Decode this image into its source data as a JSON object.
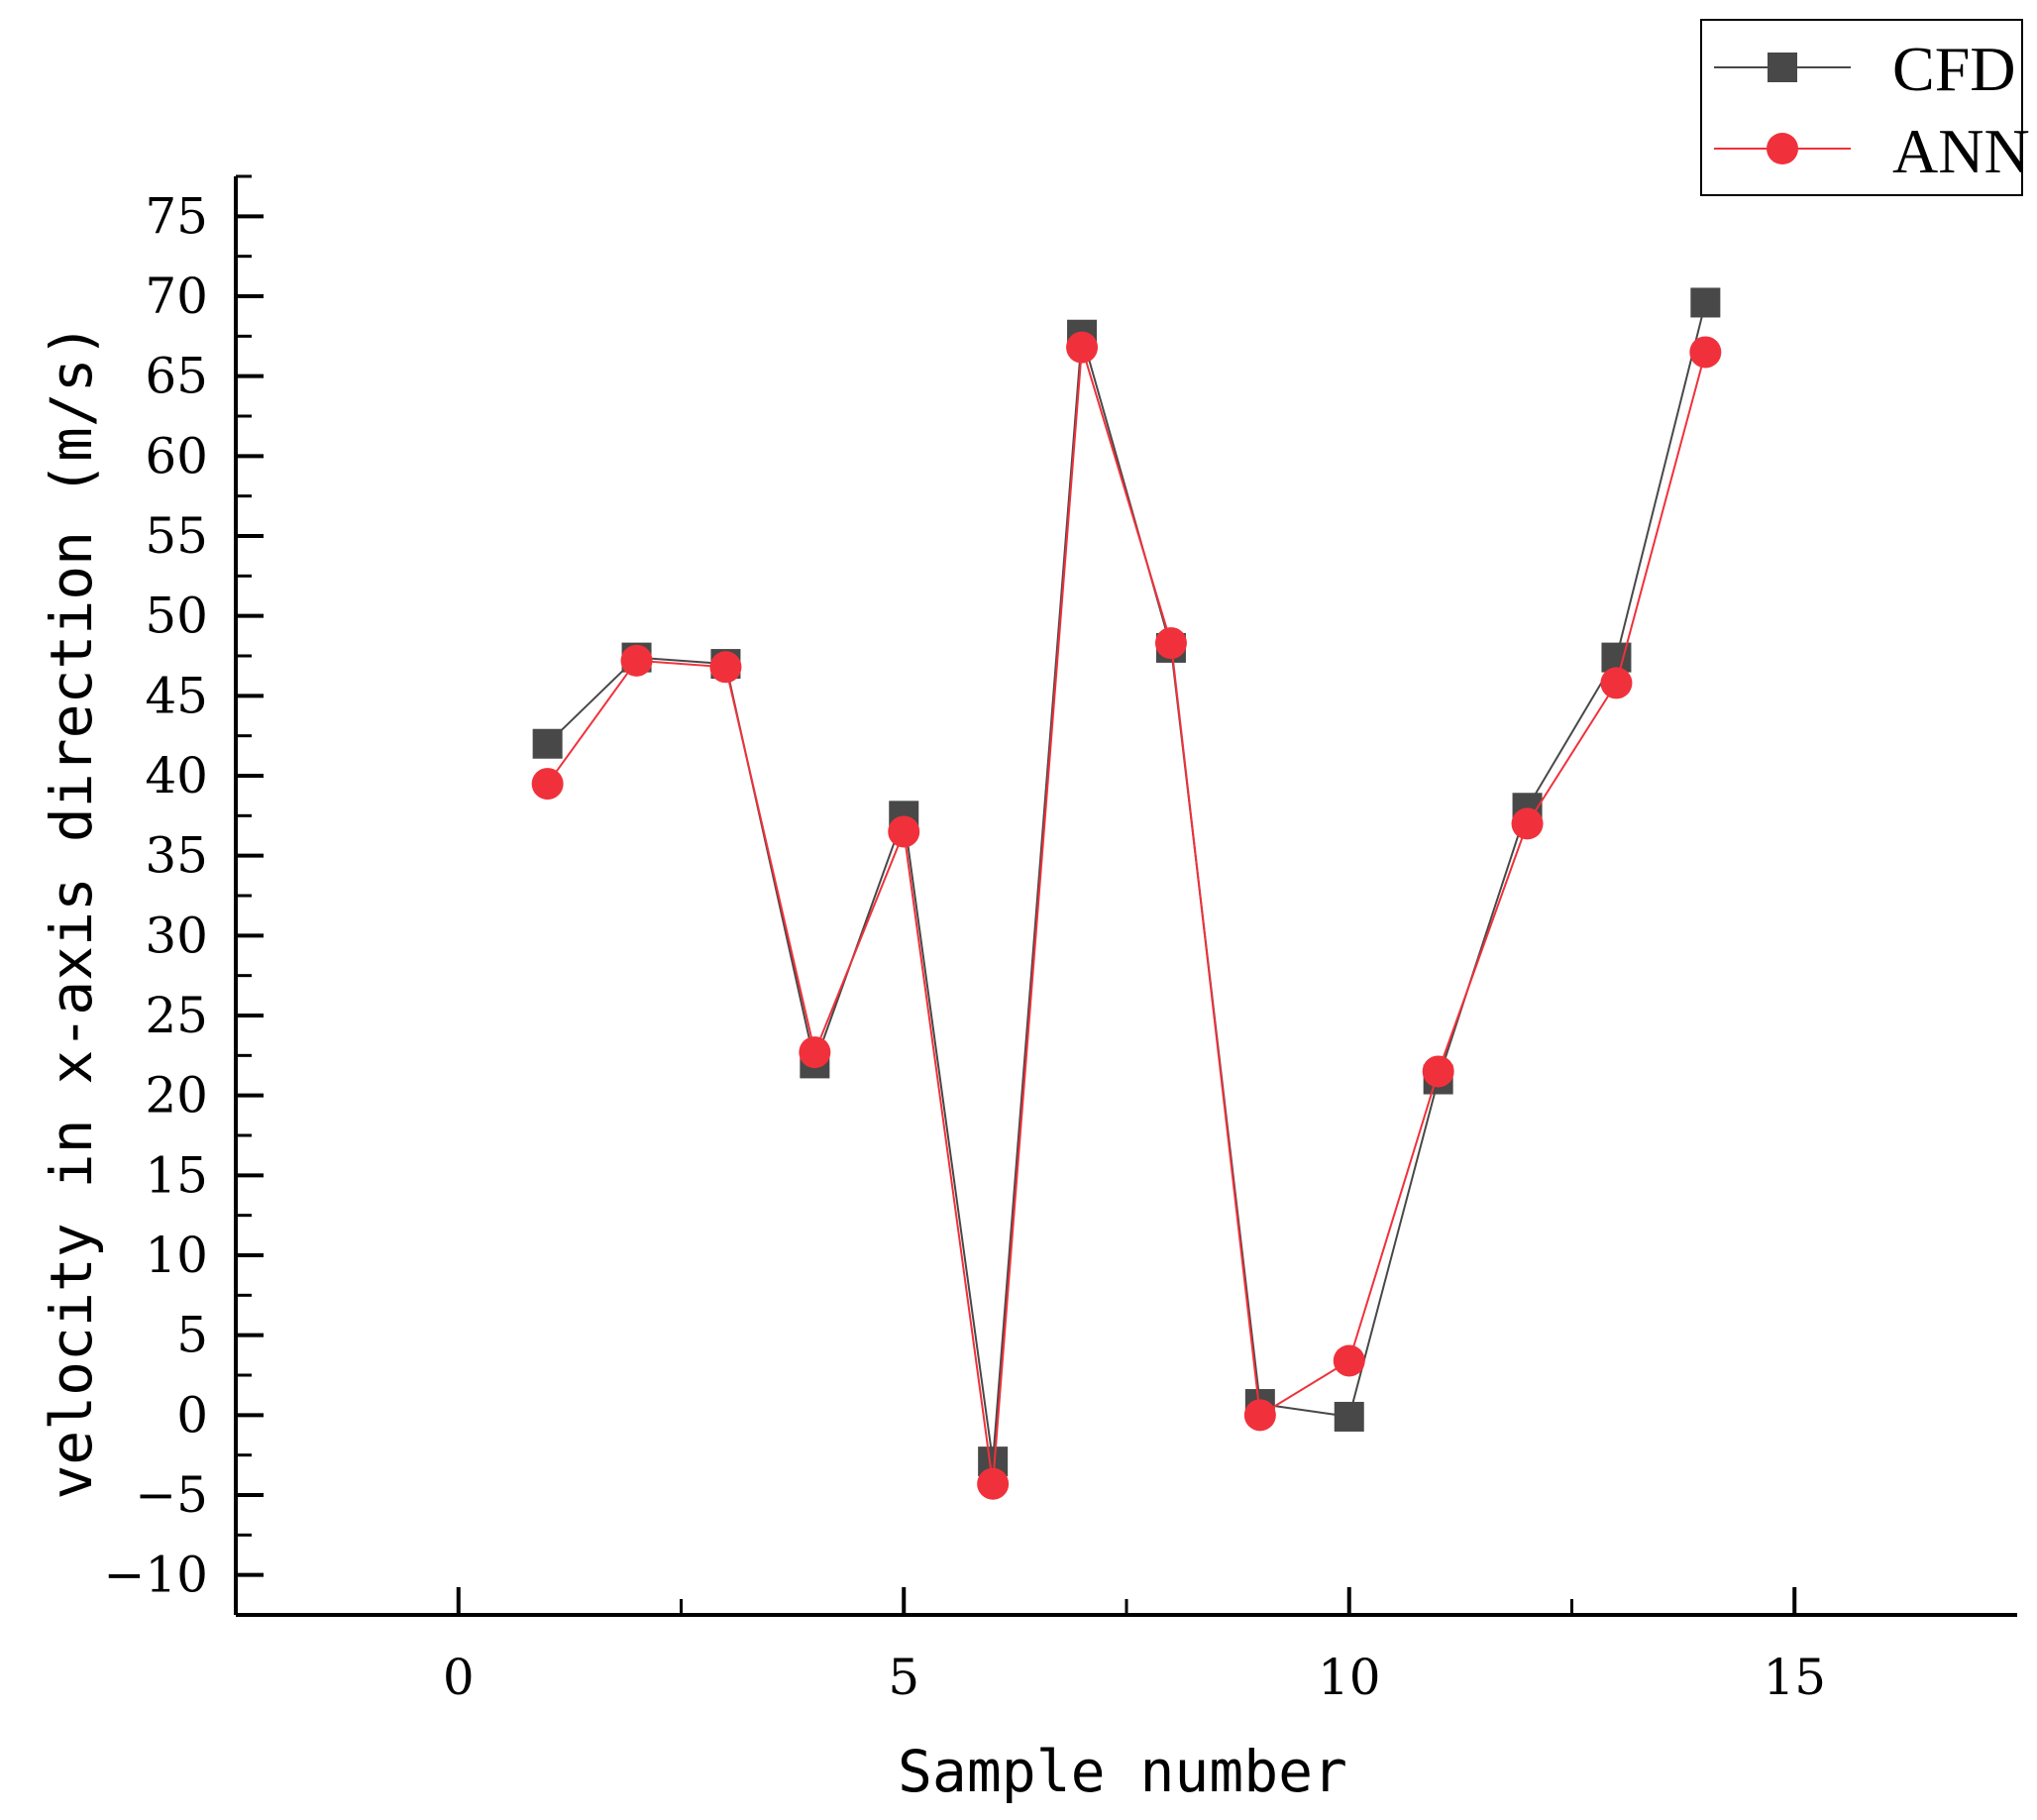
{
  "chart_data": {
    "type": "line",
    "title": "",
    "xlabel": "Sample number",
    "ylabel": "velocity in x-axis direction (m/s)",
    "xlim": [
      -2.5,
      17.5
    ],
    "ylim": [
      -12.5,
      77.5
    ],
    "x_ticks": [
      0,
      5,
      10,
      15
    ],
    "x_tick_labels": [
      "0",
      "5",
      "10",
      "15"
    ],
    "y_ticks": [
      -10,
      -5,
      0,
      5,
      10,
      15,
      20,
      25,
      30,
      35,
      40,
      45,
      50,
      55,
      60,
      65,
      70,
      75
    ],
    "y_tick_labels": [
      "−10",
      "−5",
      "0",
      "5",
      "10",
      "15",
      "20",
      "25",
      "30",
      "35",
      "40",
      "45",
      "50",
      "55",
      "60",
      "65",
      "70",
      "75"
    ],
    "grid": false,
    "legend_position": "top-right",
    "x": [
      1,
      2,
      3,
      4,
      5,
      6,
      7,
      8,
      9,
      10,
      11,
      12,
      13,
      14
    ],
    "series": [
      {
        "name": "CFD",
        "marker": "square",
        "color": "#484848",
        "values": [
          42.0,
          47.4,
          47.0,
          22.0,
          37.5,
          -2.9,
          67.6,
          48.0,
          0.7,
          -0.1,
          21.0,
          38.0,
          47.4,
          69.6
        ]
      },
      {
        "name": "ANN",
        "marker": "circle",
        "color": "#f0313b",
        "values": [
          39.5,
          47.2,
          46.8,
          22.7,
          36.5,
          -4.3,
          66.8,
          48.3,
          0.0,
          3.4,
          21.5,
          37.0,
          45.8,
          66.5
        ]
      }
    ]
  }
}
